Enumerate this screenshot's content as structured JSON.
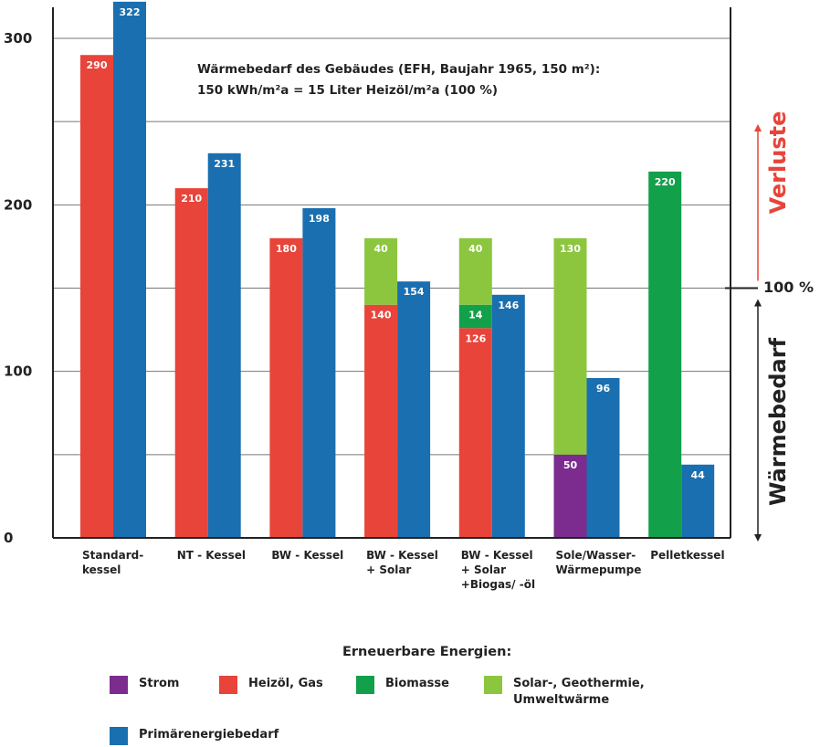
{
  "chart_data": {
    "type": "bar",
    "stacked_groups": true,
    "ylim": [
      0,
      330
    ],
    "yticks": [
      "0",
      "100",
      "200",
      "300"
    ],
    "gridlines_at": [
      50,
      100,
      150,
      200,
      250,
      300
    ],
    "grid": true,
    "categories": [
      "Standard-\nkessel",
      "NT - Kessel",
      "BW - Kessel",
      "BW - Kessel\n+ Solar",
      "BW - Kessel\n+ Solar\n+Biogas/ -öl",
      "Sole/Wasser-\nWärmepumpe",
      "Pelletkessel"
    ],
    "groups": [
      {
        "end_use": [
          {
            "type": "heizoel_gas",
            "value": 290,
            "label": "290"
          }
        ],
        "primary": {
          "value": 322,
          "label": "322"
        }
      },
      {
        "end_use": [
          {
            "type": "heizoel_gas",
            "value": 210,
            "label": "210"
          }
        ],
        "primary": {
          "value": 231,
          "label": "231"
        }
      },
      {
        "end_use": [
          {
            "type": "heizoel_gas",
            "value": 180,
            "label": "180"
          }
        ],
        "primary": {
          "value": 198,
          "label": "198"
        }
      },
      {
        "end_use": [
          {
            "type": "heizoel_gas",
            "value": 140,
            "label": "140"
          },
          {
            "type": "solar_geo",
            "value": 40,
            "label": "40"
          }
        ],
        "primary": {
          "value": 154,
          "label": "154"
        }
      },
      {
        "end_use": [
          {
            "type": "heizoel_gas",
            "value": 126,
            "label": "126"
          },
          {
            "type": "biomasse",
            "value": 14,
            "label": "14"
          },
          {
            "type": "solar_geo",
            "value": 40,
            "label": "40"
          }
        ],
        "primary": {
          "value": 146,
          "label": "146"
        }
      },
      {
        "end_use": [
          {
            "type": "strom",
            "value": 50,
            "label": "50"
          },
          {
            "type": "solar_geo",
            "value": 130,
            "label": "130"
          }
        ],
        "primary": {
          "value": 96,
          "label": "96"
        }
      },
      {
        "end_use": [
          {
            "type": "biomasse",
            "value": 220,
            "label": "220"
          }
        ],
        "primary": {
          "value": 44,
          "label": "44"
        }
      }
    ],
    "annotation_lines": [
      "Wärmebedarf des Gebäudes (EFH, Baujahr 1965, 150 m²):",
      "150 kWh/m²a = 15 Liter Heizöl/m²a (100 %)"
    ],
    "reference_value": 150,
    "reference_label": "100 %",
    "side_label_top": "Verluste",
    "side_label_bottom": "Wärmebedarf",
    "colors": {
      "strom": "#7b2c8e",
      "heizoel_gas": "#e8443a",
      "biomasse": "#12a04a",
      "solar_geo": "#8cc63f",
      "primary": "#1a6fb0",
      "verluste": "#e8443a"
    }
  },
  "legend": {
    "title": "Erneuerbare Energien:",
    "items": [
      {
        "key": "strom",
        "label": "Strom"
      },
      {
        "key": "heizoel_gas",
        "label": "Heizöl, Gas"
      },
      {
        "key": "biomasse",
        "label": "Biomasse"
      },
      {
        "key": "solar_geo",
        "label": "Solar-, Geothermie,\nUmweltwärme"
      },
      {
        "key": "primary",
        "label": "Primärenergiebedarf"
      }
    ]
  }
}
